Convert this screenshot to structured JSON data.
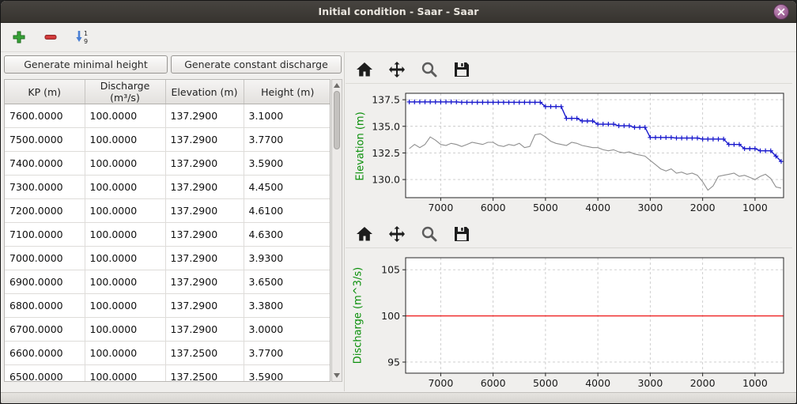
{
  "window": {
    "title": "Initial condition - Saar - Saar"
  },
  "main_toolbar": {
    "add_tooltip": "add",
    "remove_tooltip": "remove",
    "sort_tooltip": "sort"
  },
  "left_panel": {
    "buttons": {
      "minimal_height": "Generate minimal height",
      "constant_discharge": "Generate constant discharge"
    },
    "table": {
      "columns": [
        "KP (m)",
        "Discharge (m³/s)",
        "Elevation (m)",
        "Height (m)"
      ],
      "rows": [
        [
          "7600.0000",
          "100.0000",
          "137.2900",
          "3.1000"
        ],
        [
          "7500.0000",
          "100.0000",
          "137.2900",
          "3.7700"
        ],
        [
          "7400.0000",
          "100.0000",
          "137.2900",
          "3.5900"
        ],
        [
          "7300.0000",
          "100.0000",
          "137.2900",
          "4.4500"
        ],
        [
          "7200.0000",
          "100.0000",
          "137.2900",
          "4.6100"
        ],
        [
          "7100.0000",
          "100.0000",
          "137.2900",
          "4.6300"
        ],
        [
          "7000.0000",
          "100.0000",
          "137.2900",
          "3.9300"
        ],
        [
          "6900.0000",
          "100.0000",
          "137.2900",
          "3.6500"
        ],
        [
          "6800.0000",
          "100.0000",
          "137.2900",
          "3.3800"
        ],
        [
          "6700.0000",
          "100.0000",
          "137.2900",
          "3.0000"
        ],
        [
          "6600.0000",
          "100.0000",
          "137.2500",
          "3.7700"
        ],
        [
          "6500.0000",
          "100.0000",
          "137.2500",
          "3.5900"
        ]
      ]
    }
  },
  "chart_data": [
    {
      "type": "line",
      "ylabel": "Elevation (m)",
      "xlabel": "",
      "xlim": [
        7670,
        455
      ],
      "ylim": [
        128.3,
        138.1
      ],
      "xticks": [
        7000,
        6000,
        5000,
        4000,
        3000,
        2000,
        1000
      ],
      "yticks": [
        130.0,
        132.5,
        135.0,
        137.5
      ],
      "ytick_labels": [
        "130.0",
        "132.5",
        "135.0",
        "137.5"
      ],
      "grid": true,
      "x": [
        7600,
        7500,
        7400,
        7300,
        7200,
        7100,
        7000,
        6900,
        6800,
        6700,
        6600,
        6500,
        6400,
        6300,
        6200,
        6100,
        6000,
        5900,
        5800,
        5700,
        5600,
        5500,
        5400,
        5300,
        5200,
        5100,
        5000,
        4900,
        4800,
        4700,
        4600,
        4500,
        4400,
        4300,
        4200,
        4100,
        4000,
        3900,
        3800,
        3700,
        3600,
        3500,
        3400,
        3300,
        3200,
        3100,
        3000,
        2900,
        2800,
        2700,
        2600,
        2500,
        2400,
        2300,
        2200,
        2100,
        2000,
        1900,
        1800,
        1700,
        1600,
        1500,
        1400,
        1300,
        1200,
        1100,
        1000,
        900,
        800,
        700,
        600,
        500
      ],
      "series": [
        {
          "name": "water surface elevation",
          "color": "#1a1acd",
          "marker": "+",
          "line_width": 1.4,
          "values": [
            137.29,
            137.29,
            137.29,
            137.29,
            137.29,
            137.29,
            137.29,
            137.29,
            137.29,
            137.29,
            137.25,
            137.25,
            137.25,
            137.25,
            137.25,
            137.25,
            137.25,
            137.25,
            137.25,
            137.25,
            137.25,
            137.25,
            137.25,
            137.25,
            137.25,
            137.25,
            136.85,
            136.85,
            136.85,
            136.85,
            135.75,
            135.75,
            135.75,
            135.5,
            135.5,
            135.5,
            135.2,
            135.2,
            135.2,
            135.2,
            135.05,
            135.05,
            135.05,
            134.9,
            134.9,
            134.9,
            133.95,
            133.95,
            133.95,
            133.95,
            133.95,
            133.9,
            133.9,
            133.9,
            133.9,
            133.9,
            133.8,
            133.8,
            133.8,
            133.8,
            133.8,
            133.3,
            133.3,
            133.3,
            132.9,
            132.9,
            132.9,
            132.7,
            132.7,
            132.7,
            132.2,
            131.7
          ]
        },
        {
          "name": "river bottom elevation",
          "color": "#8f8f8f",
          "marker": null,
          "line_width": 1.1,
          "values": [
            132.9,
            133.3,
            133.0,
            133.3,
            134.0,
            133.7,
            133.3,
            133.2,
            133.4,
            133.3,
            133.1,
            133.3,
            133.5,
            133.4,
            133.3,
            133.5,
            133.5,
            133.2,
            133.1,
            133.3,
            133.2,
            133.4,
            133.0,
            133.1,
            134.2,
            134.3,
            134.0,
            133.6,
            133.4,
            133.3,
            133.2,
            133.5,
            133.4,
            133.2,
            133.1,
            133.0,
            133.0,
            132.8,
            132.7,
            132.8,
            132.6,
            132.5,
            132.6,
            132.4,
            132.3,
            132.2,
            131.8,
            131.4,
            131.0,
            130.8,
            131.0,
            130.6,
            130.7,
            130.5,
            130.6,
            130.4,
            129.8,
            129.0,
            129.4,
            130.3,
            130.4,
            130.5,
            130.6,
            130.3,
            130.4,
            130.2,
            130.0,
            130.3,
            130.5,
            130.1,
            129.3,
            129.2
          ]
        }
      ]
    },
    {
      "type": "line",
      "ylabel": "Discharge (m^3/s)",
      "xlabel": "",
      "xlim": [
        7670,
        455
      ],
      "ylim": [
        93.8,
        106.3
      ],
      "xticks": [
        7000,
        6000,
        5000,
        4000,
        3000,
        2000,
        1000
      ],
      "yticks": [
        95,
        100,
        105
      ],
      "ytick_labels": [
        "95",
        "100",
        "105"
      ],
      "grid": true,
      "series": [
        {
          "name": "discharge",
          "color": "#ee2222",
          "marker": null,
          "line_width": 1.4,
          "x": [
            7670,
            455
          ],
          "values": [
            100,
            100
          ]
        }
      ]
    }
  ]
}
